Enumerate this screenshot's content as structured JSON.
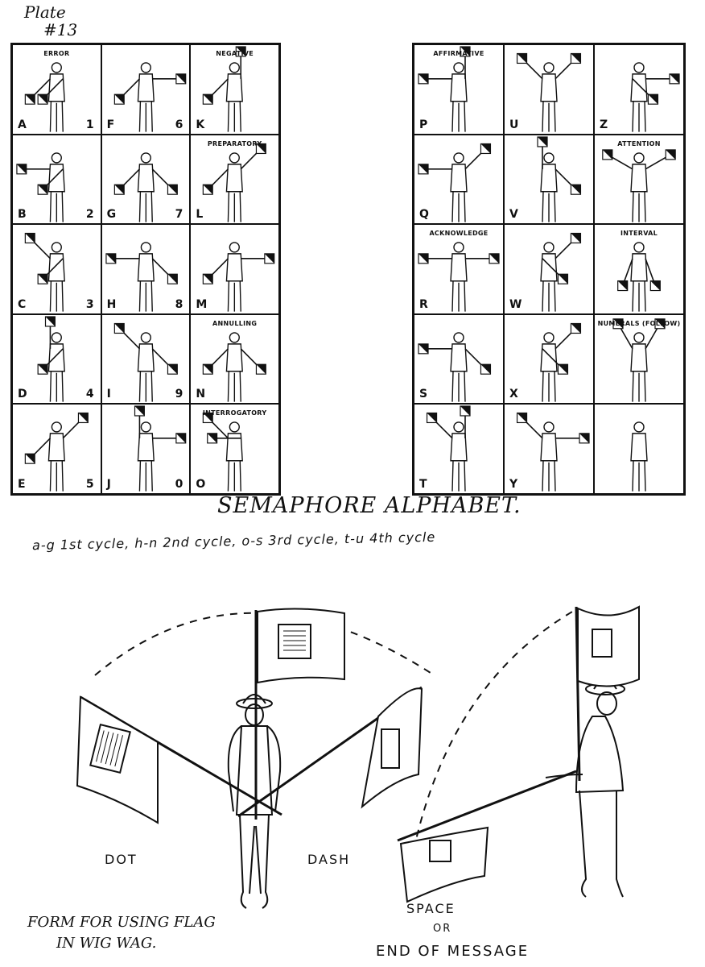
{
  "plate": {
    "line1": "Plate",
    "line2": "#13"
  },
  "left_grid": [
    {
      "letter": "A",
      "digit": "1",
      "caption": "ERROR",
      "pose": [
        225,
        225
      ]
    },
    {
      "letter": "F",
      "digit": "6",
      "caption": "",
      "pose": [
        225,
        90
      ]
    },
    {
      "letter": "K",
      "digit": "",
      "caption": "NEGATIVE",
      "pose": [
        225,
        0
      ]
    },
    {
      "letter": "B",
      "digit": "2",
      "caption": "",
      "pose": [
        270,
        225
      ]
    },
    {
      "letter": "G",
      "digit": "7",
      "caption": "",
      "pose": [
        225,
        135
      ]
    },
    {
      "letter": "L",
      "digit": "",
      "caption": "PREPARATORY",
      "pose": [
        225,
        45
      ]
    },
    {
      "letter": "C",
      "digit": "3",
      "caption": "",
      "pose": [
        315,
        225
      ]
    },
    {
      "letter": "H",
      "digit": "8",
      "caption": "",
      "pose": [
        270,
        135
      ]
    },
    {
      "letter": "M",
      "digit": "",
      "caption": "",
      "pose": [
        225,
        90
      ]
    },
    {
      "letter": "D",
      "digit": "4",
      "caption": "",
      "pose": [
        0,
        225
      ]
    },
    {
      "letter": "I",
      "digit": "9",
      "caption": "",
      "pose": [
        315,
        135
      ]
    },
    {
      "letter": "N",
      "digit": "",
      "caption": "ANNULLING",
      "pose": [
        225,
        135
      ]
    },
    {
      "letter": "E",
      "digit": "5",
      "caption": "",
      "pose": [
        225,
        45
      ]
    },
    {
      "letter": "J",
      "digit": "0",
      "caption": "",
      "pose": [
        0,
        90
      ]
    },
    {
      "letter": "O",
      "digit": "",
      "caption": "INTERROGATORY",
      "pose": [
        315,
        270
      ]
    }
  ],
  "right_grid": [
    {
      "letter": "P",
      "caption": "AFFIRMATIVE",
      "pose": [
        270,
        0
      ]
    },
    {
      "letter": "U",
      "caption": "",
      "pose": [
        315,
        45
      ]
    },
    {
      "letter": "Z",
      "caption": "",
      "pose": [
        135,
        90
      ]
    },
    {
      "letter": "Q",
      "caption": "",
      "pose": [
        270,
        45
      ]
    },
    {
      "letter": "V",
      "caption": "",
      "pose": [
        0,
        135
      ]
    },
    {
      "letter": "",
      "caption": "ATTENTION",
      "pose": [
        300,
        60
      ]
    },
    {
      "letter": "R",
      "caption": "ACKNOWLEDGE",
      "pose": [
        270,
        90
      ]
    },
    {
      "letter": "W",
      "caption": "",
      "pose": [
        135,
        45
      ]
    },
    {
      "letter": "",
      "caption": "INTERVAL",
      "pose": [
        200,
        160
      ]
    },
    {
      "letter": "S",
      "caption": "",
      "pose": [
        270,
        135
      ]
    },
    {
      "letter": "X",
      "caption": "",
      "pose": [
        135,
        45
      ]
    },
    {
      "letter": "",
      "caption": "NUMERALS (FOLLOW)",
      "pose": [
        330,
        30
      ]
    },
    {
      "letter": "T",
      "caption": "",
      "pose": [
        315,
        0
      ]
    },
    {
      "letter": "Y",
      "caption": "",
      "pose": [
        315,
        90
      ]
    },
    {
      "letter": "",
      "caption": "",
      "pose": null
    }
  ],
  "title": "SEMAPHORE ALPHABET.",
  "cycles": "a-g 1st cycle,  h-n 2nd cycle,  o-s 3rd cycle,  t-u 4th cycle",
  "wigwag": {
    "dot": "DOT",
    "dash": "DASH",
    "space_line1": "SPACE",
    "space_line2": "OR",
    "space_line3": "END OF MESSAGE",
    "form_line1": "FORM FOR USING FLAG",
    "form_line2": "IN WIG WAG."
  }
}
